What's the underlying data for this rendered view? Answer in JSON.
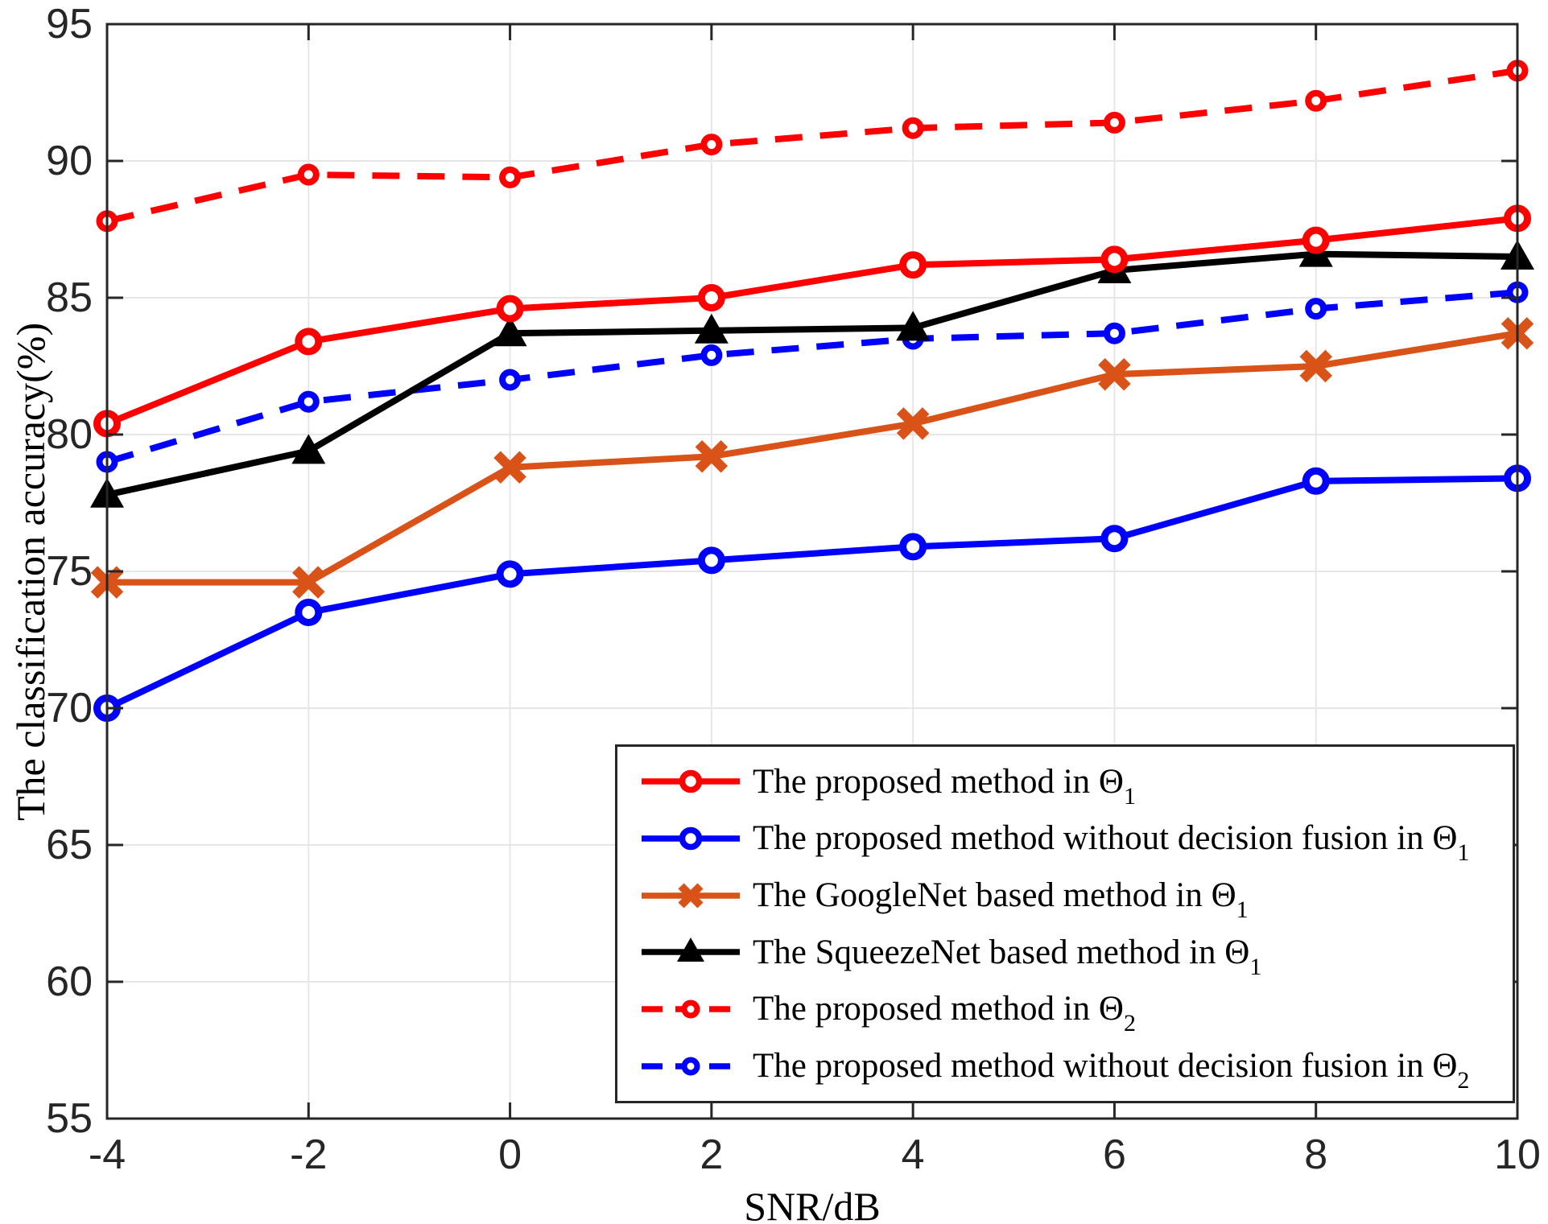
{
  "chart_data": {
    "type": "line",
    "title": "",
    "xlabel": "SNR/dB",
    "ylabel": "The classification accuracy(%)",
    "xlim": [
      -4,
      10
    ],
    "ylim": [
      55,
      95
    ],
    "x_ticks": [
      -4,
      -2,
      0,
      2,
      4,
      6,
      8,
      10
    ],
    "y_ticks": [
      55,
      60,
      65,
      70,
      75,
      80,
      85,
      90,
      95
    ],
    "grid": true,
    "legend_position": "inside-bottom-right",
    "x": [
      -4,
      -2,
      0,
      2,
      4,
      6,
      8,
      10
    ],
    "series": [
      {
        "label": "The proposed method in Θ",
        "sub": "1",
        "color": "#FF0000",
        "line": "solid",
        "marker": "circle-open",
        "values": [
          80.4,
          83.4,
          84.6,
          85.0,
          86.2,
          86.4,
          87.1,
          87.9
        ]
      },
      {
        "label": "The proposed method without decision fusion in Θ",
        "sub": "1",
        "color": "#0000FF",
        "line": "solid",
        "marker": "circle-open",
        "values": [
          70.0,
          73.5,
          74.9,
          75.4,
          75.9,
          76.2,
          78.3,
          78.4
        ]
      },
      {
        "label": "The GoogleNet based method in Θ",
        "sub": "1",
        "color": "#D95319",
        "line": "solid",
        "marker": "x",
        "values": [
          74.6,
          74.6,
          78.8,
          79.2,
          80.4,
          82.2,
          82.5,
          83.7
        ]
      },
      {
        "label": "The SqueezeNet based method in Θ",
        "sub": "1",
        "color": "#000000",
        "line": "solid",
        "marker": "triangle",
        "values": [
          77.8,
          79.4,
          83.7,
          83.8,
          83.9,
          86.0,
          86.6,
          86.5
        ]
      },
      {
        "label": "The proposed method in Θ",
        "sub": "2",
        "color": "#FF0000",
        "line": "dashed",
        "marker": "circle",
        "values": [
          87.8,
          89.5,
          89.4,
          90.6,
          91.2,
          91.4,
          92.2,
          93.3
        ]
      },
      {
        "label": "The proposed method without decision fusion in Θ",
        "sub": "2",
        "color": "#0000FF",
        "line": "dashed",
        "marker": "circle",
        "values": [
          79.0,
          81.2,
          82.0,
          82.9,
          83.5,
          83.7,
          84.6,
          85.2
        ]
      }
    ],
    "colors": {
      "grid": "#E6E6E6",
      "axis": "#262626",
      "background": "#FFFFFF"
    }
  }
}
